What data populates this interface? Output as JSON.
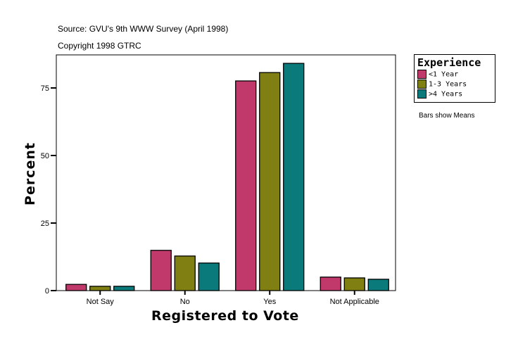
{
  "chart_data": {
    "type": "bar",
    "title": "Source: GVU's 9th WWW Survey (April 1998)",
    "subtitle": "Copyright 1998 GTRC",
    "xlabel": "Registered to Vote",
    "ylabel": "Percent",
    "categories": [
      "Not Say",
      "No",
      "Yes",
      "Not Applicable"
    ],
    "ylim": [
      0,
      85
    ],
    "yticks": [
      0,
      25,
      50,
      75
    ],
    "grid": false,
    "legend_title": "Experience",
    "legend_position": "right",
    "note": "Bars show Means",
    "series": [
      {
        "name": "<1 Year",
        "color": "#c0396a",
        "values": [
          2.3,
          14.9,
          77.6,
          5.0
        ]
      },
      {
        "name": "1-3 Years",
        "color": "#808012",
        "values": [
          1.6,
          12.8,
          80.7,
          4.7
        ]
      },
      {
        "name": ">4 Years",
        "color": "#0b7a7a",
        "values": [
          1.6,
          10.2,
          84.1,
          4.2
        ]
      }
    ]
  }
}
